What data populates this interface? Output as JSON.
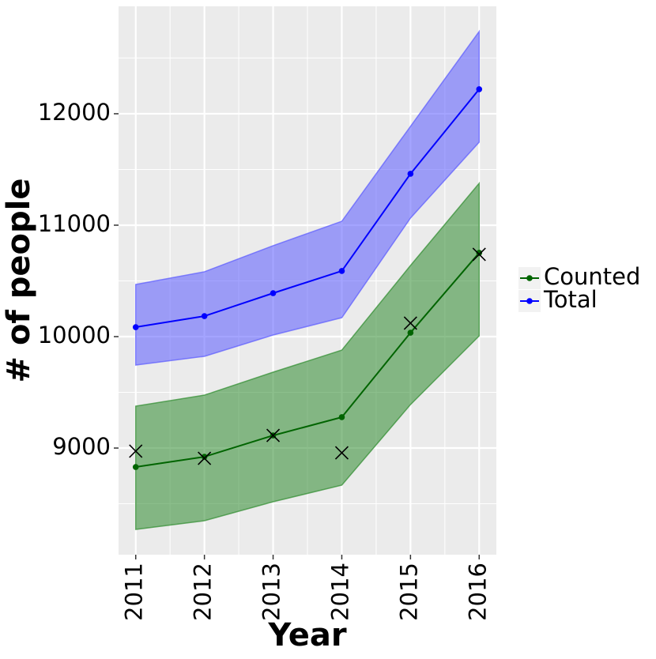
{
  "chart_data": {
    "type": "line",
    "x_label": "Year",
    "y_label": "# of people",
    "x": [
      2011,
      2012,
      2013,
      2014,
      2015,
      2016
    ],
    "xlim": [
      2010.75,
      2016.25
    ],
    "xticks": [
      2011,
      2012,
      2013,
      2014,
      2015,
      2016
    ],
    "ylim": [
      8043,
      12964
    ],
    "yticks": [
      9000,
      10000,
      11000,
      12000
    ],
    "grid": true,
    "series": [
      {
        "name": "Counted",
        "color": "#006400",
        "band_color": "#2e8b2e",
        "values": [
          8830,
          8922,
          9113,
          9277,
          10035,
          10752
        ],
        "lower": [
          8270,
          8348,
          8518,
          8667,
          9390,
          10007
        ],
        "upper": [
          9376,
          9475,
          9681,
          9879,
          10638,
          11376
        ]
      },
      {
        "name": "Total",
        "color": "#0000ff",
        "band_color": "#5a5aff",
        "values": [
          10085,
          10184,
          10390,
          10589,
          11461,
          12220
        ],
        "lower": [
          9745,
          9823,
          10014,
          10170,
          11064,
          11745
        ],
        "upper": [
          10468,
          10582,
          10816,
          11035,
          11887,
          12738
        ]
      }
    ],
    "observed": {
      "marker": "x",
      "color": "#000000",
      "values": [
        8972,
        8908,
        9113,
        8957,
        10121,
        10738
      ]
    }
  }
}
